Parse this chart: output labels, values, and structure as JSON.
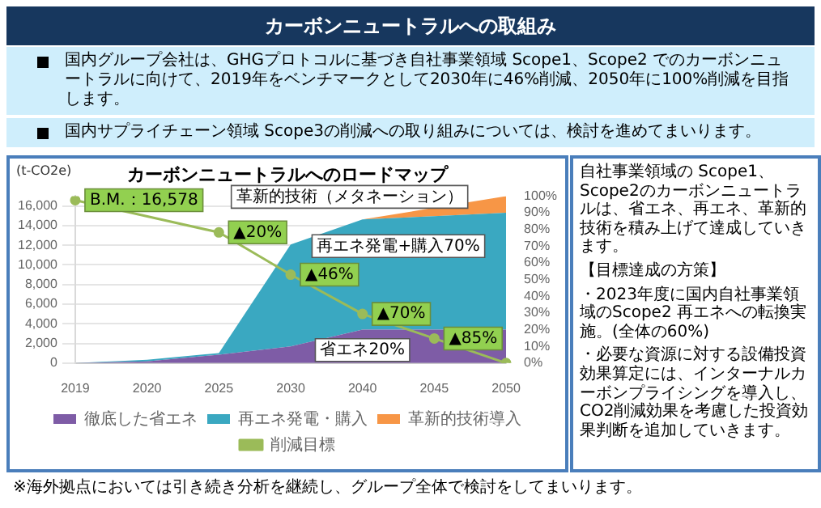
{
  "chart_data": {
    "type": "area",
    "title": "カーボンニュートラルへのロードマップ",
    "ylabel": "(t-CO2e)",
    "categories": [
      "2019",
      "2020",
      "2025",
      "2030",
      "2040",
      "2045",
      "2050"
    ],
    "series": [
      {
        "name": "徹底した省エネ",
        "color": "#7e5ca6",
        "axis": "y2",
        "values": [
          0,
          1,
          5,
          10,
          20,
          20,
          20
        ]
      },
      {
        "name": "再エネ発電・購入",
        "color": "#3aa8c1",
        "axis": "y2",
        "values": [
          0,
          1,
          1,
          61,
          66,
          68,
          70
        ]
      },
      {
        "name": "革新的技術導入",
        "color": "#f79646",
        "axis": "y2",
        "values": [
          0,
          0,
          0,
          0,
          0,
          5,
          10
        ]
      },
      {
        "name": "削減目標",
        "type": "line",
        "color": "#9bbb59",
        "marker": "circle",
        "values": [
          16578,
          null,
          13300,
          9000,
          5000,
          2500,
          0
        ]
      }
    ],
    "stacked": true,
    "ylim": [
      0,
      17000
    ],
    "yticks": [
      0,
      {
        "value": 2000,
        "label": "2,000"
      },
      {
        "value": 4000,
        "label": "4,000"
      },
      {
        "value": 6000,
        "label": "6,000"
      },
      {
        "value": 8000,
        "label": "8,000"
      },
      {
        "value": 10000,
        "label": "10,000"
      },
      {
        "value": 12000,
        "label": "12,000"
      },
      {
        "value": 14000,
        "label": "14,000"
      },
      {
        "value": 16000,
        "label": "16,000"
      }
    ],
    "y2lim": [
      0,
      100
    ],
    "y2ticks": [
      {
        "value": 0,
        "label": "0%"
      },
      {
        "value": 10,
        "label": "10%"
      },
      {
        "value": 20,
        "label": "20%"
      },
      {
        "value": 30,
        "label": "30%"
      },
      {
        "value": 40,
        "label": "40%"
      },
      {
        "value": 50,
        "label": "50%"
      },
      {
        "value": 60,
        "label": "60%"
      },
      {
        "value": 70,
        "label": "70%"
      },
      {
        "value": 80,
        "label": "80%"
      },
      {
        "value": 90,
        "label": "90%"
      },
      {
        "value": 100,
        "label": "100%"
      }
    ],
    "grid": "y",
    "legend": "bottom",
    "annotations": [
      "カーボンニュートラルへの取組み",
      "国内グループ会社は、GHGプロトコルに基づき自社事業領域 Scope1、Scope2 でのカーボンニュートラルに向けて、2019年をベンチマークとして2030年に46%削減、2050年に100%削減を目指します。",
      "国内サプライチェーン領域 Scope3の削減への取り組みについては、検討を進めてまいります。",
      "自社事業領域の Scope1、Scope2のカーボンニュートラルは、省エネ、再エネ、革新的技術を積み上げて達成していきます。",
      "【目標達成の方策】",
      "・2023年度に国内自社事業領域のScope2 再エネへの転換実施。(全体の60%)",
      "・必要な資源に対する設備投資効果算定には、インターナルカーボンプライシングを導入し、CO2削減効果を考慮した投資効果判断を追加していきます。",
      "※海外拠点においては引き続き分析を継続し、グループ全体で検討をしてまいります。",
      "革新的技術（メタネーション）",
      "再エネ発電+購入70%",
      "省エネ20%",
      {
        "text": "B.M.：16,578",
        "x": "2019",
        "y": 16578
      },
      {
        "text": "▲20%",
        "x": "2025",
        "y": 13300
      },
      {
        "text": "▲46%",
        "x": "2030",
        "y": 9000
      },
      {
        "text": "▲70%",
        "x": "2040",
        "y": 5000
      },
      {
        "text": "▲85%",
        "x": "2045",
        "y": 2500
      }
    ]
  }
}
